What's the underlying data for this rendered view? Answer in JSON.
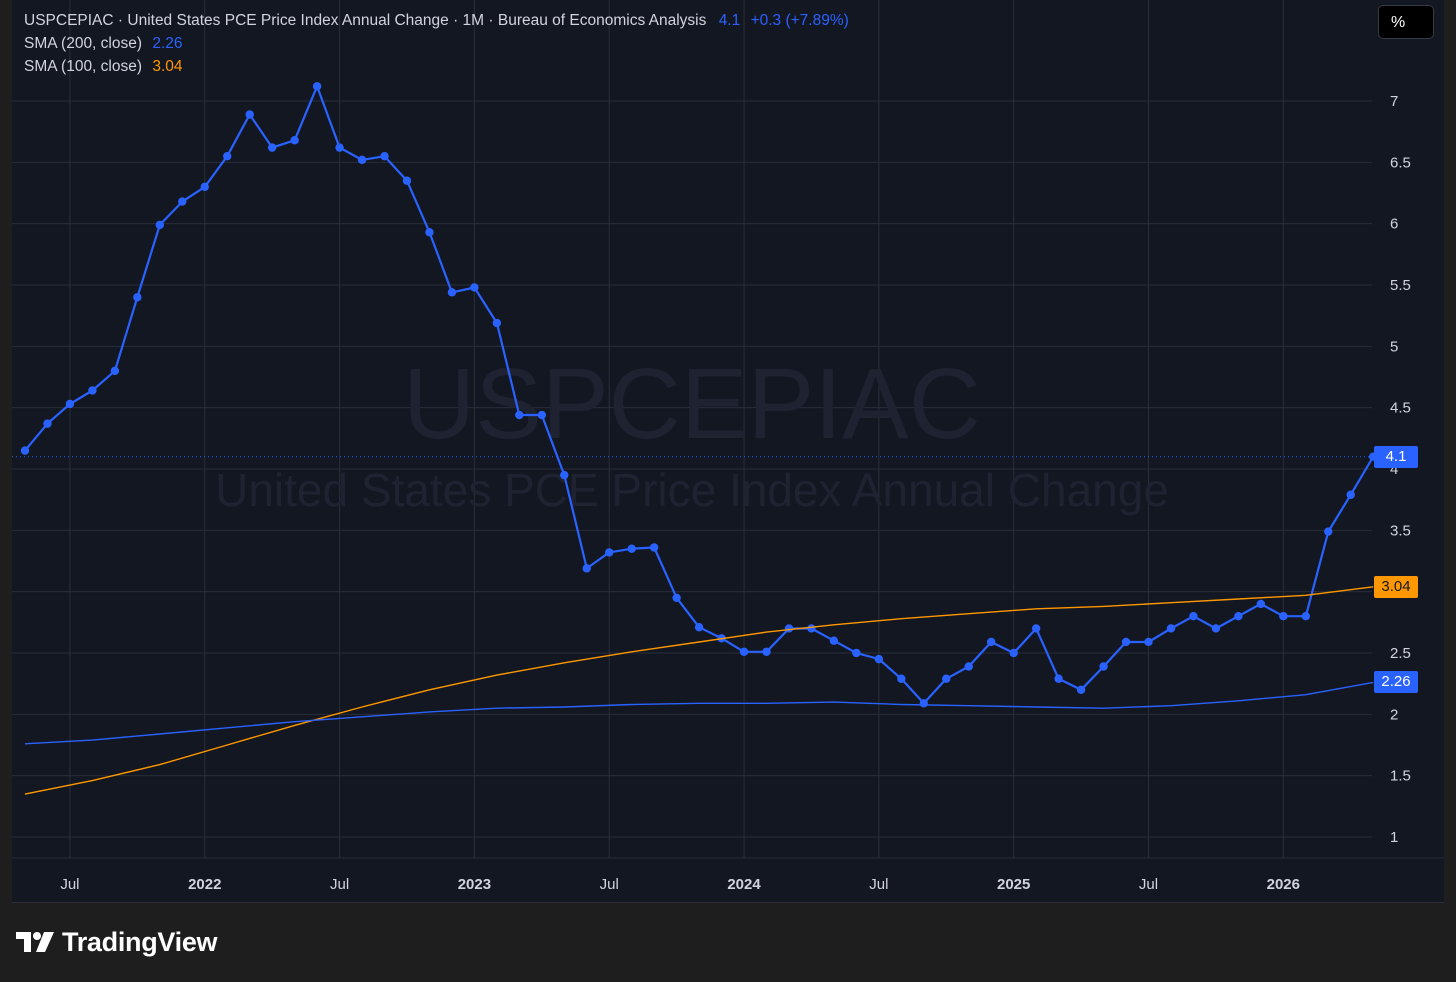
{
  "header": {
    "symbol": "USPCEPIAC",
    "title": "United States PCE Price Index Annual Change",
    "interval": "1M",
    "source": "Bureau of Economics Analysis",
    "last_value": "4.1",
    "change": "+0.3 (+7.89%)"
  },
  "indicators": [
    {
      "label": "SMA (200, close)",
      "value": "2.26",
      "color": "#2962ff"
    },
    {
      "label": "SMA (100, close)",
      "value": "3.04",
      "color": "#ff9800"
    }
  ],
  "unit_button": "%",
  "watermark": {
    "symbol": "USPCEPIAC",
    "description": "United States PCE Price Index Annual Change"
  },
  "price_labels": {
    "last": "4.1",
    "sma100": "3.04",
    "sma200": "2.26"
  },
  "brand": {
    "name": "TradingView",
    "icon": "tradingview-logo-icon"
  },
  "colors": {
    "background": "#131722",
    "page": "#1e1e1e",
    "grid": "#2a2e39",
    "main_line": "#2962ff",
    "sma200": "#2962ff",
    "sma100": "#ff9800",
    "text": "#d1d4dc"
  },
  "chart_data": {
    "type": "line",
    "ylim": [
      0.8,
      7.6
    ],
    "y_ticks": [
      1,
      1.5,
      2,
      2.5,
      3,
      3.5,
      4,
      4.5,
      5,
      5.5,
      6,
      6.5,
      7
    ],
    "x_ticks": [
      {
        "date": "2021-07",
        "label": "Jul",
        "bold": false
      },
      {
        "date": "2022-01",
        "label": "2022",
        "bold": true
      },
      {
        "date": "2022-07",
        "label": "Jul",
        "bold": false
      },
      {
        "date": "2023-01",
        "label": "2023",
        "bold": true
      },
      {
        "date": "2023-07",
        "label": "Jul",
        "bold": false
      },
      {
        "date": "2024-01",
        "label": "2024",
        "bold": true
      },
      {
        "date": "2024-07",
        "label": "Jul",
        "bold": false
      },
      {
        "date": "2025-01",
        "label": "2025",
        "bold": true
      },
      {
        "date": "2025-07",
        "label": "Jul",
        "bold": false
      },
      {
        "date": "2026-01",
        "label": "2026",
        "bold": true
      }
    ],
    "grid": true,
    "series": [
      {
        "name": "USPCEPIAC",
        "markers": true,
        "x": [
          "2021-05",
          "2021-06",
          "2021-07",
          "2021-08",
          "2021-09",
          "2021-10",
          "2021-11",
          "2021-12",
          "2022-01",
          "2022-02",
          "2022-03",
          "2022-04",
          "2022-05",
          "2022-06",
          "2022-07",
          "2022-08",
          "2022-09",
          "2022-10",
          "2022-11",
          "2022-12",
          "2023-01",
          "2023-02",
          "2023-03",
          "2023-04",
          "2023-05",
          "2023-06",
          "2023-07",
          "2023-08",
          "2023-09",
          "2023-10",
          "2023-11",
          "2023-12",
          "2024-01",
          "2024-02",
          "2024-03",
          "2024-04",
          "2024-05",
          "2024-06",
          "2024-07",
          "2024-08",
          "2024-09",
          "2024-10",
          "2024-11",
          "2024-12",
          "2025-01",
          "2025-02",
          "2025-03",
          "2025-04",
          "2025-05",
          "2025-06",
          "2025-07",
          "2025-08",
          "2025-09",
          "2025-10",
          "2025-11",
          "2025-12",
          "2026-01",
          "2026-02",
          "2026-03",
          "2026-04",
          "2026-05"
        ],
        "y": [
          4.15,
          4.37,
          4.53,
          4.64,
          4.8,
          5.4,
          5.99,
          6.18,
          6.3,
          6.55,
          6.89,
          6.62,
          6.68,
          7.12,
          6.62,
          6.52,
          6.55,
          6.35,
          5.93,
          5.44,
          5.48,
          5.19,
          4.44,
          4.44,
          3.95,
          3.19,
          3.32,
          3.35,
          3.36,
          2.95,
          2.71,
          2.62,
          2.51,
          2.51,
          2.7,
          2.7,
          2.6,
          2.5,
          2.45,
          2.29,
          2.09,
          2.29,
          2.39,
          2.59,
          2.5,
          2.7,
          2.29,
          2.2,
          2.39,
          2.59,
          2.59,
          2.7,
          2.8,
          2.7,
          2.8,
          2.9,
          2.8,
          2.8,
          3.49,
          3.79,
          4.1
        ]
      },
      {
        "name": "SMA (100, close)",
        "markers": false,
        "x": [
          "2021-05",
          "2021-08",
          "2021-11",
          "2022-02",
          "2022-05",
          "2022-08",
          "2022-11",
          "2023-02",
          "2023-05",
          "2023-08",
          "2023-11",
          "2024-02",
          "2024-05",
          "2024-08",
          "2024-11",
          "2025-02",
          "2025-05",
          "2025-08",
          "2025-11",
          "2026-02",
          "2026-05"
        ],
        "y": [
          1.35,
          1.46,
          1.59,
          1.75,
          1.91,
          2.06,
          2.2,
          2.32,
          2.42,
          2.51,
          2.59,
          2.67,
          2.73,
          2.78,
          2.82,
          2.86,
          2.88,
          2.91,
          2.94,
          2.97,
          3.04
        ]
      },
      {
        "name": "SMA (200, close)",
        "markers": false,
        "x": [
          "2021-05",
          "2021-08",
          "2021-11",
          "2022-02",
          "2022-05",
          "2022-08",
          "2022-11",
          "2023-02",
          "2023-05",
          "2023-08",
          "2023-11",
          "2024-02",
          "2024-05",
          "2024-08",
          "2024-11",
          "2025-02",
          "2025-05",
          "2025-08",
          "2025-11",
          "2026-02",
          "2026-05"
        ],
        "y": [
          1.76,
          1.79,
          1.84,
          1.89,
          1.94,
          1.98,
          2.02,
          2.05,
          2.06,
          2.08,
          2.09,
          2.09,
          2.1,
          2.08,
          2.07,
          2.06,
          2.05,
          2.07,
          2.11,
          2.16,
          2.26
        ]
      }
    ]
  }
}
